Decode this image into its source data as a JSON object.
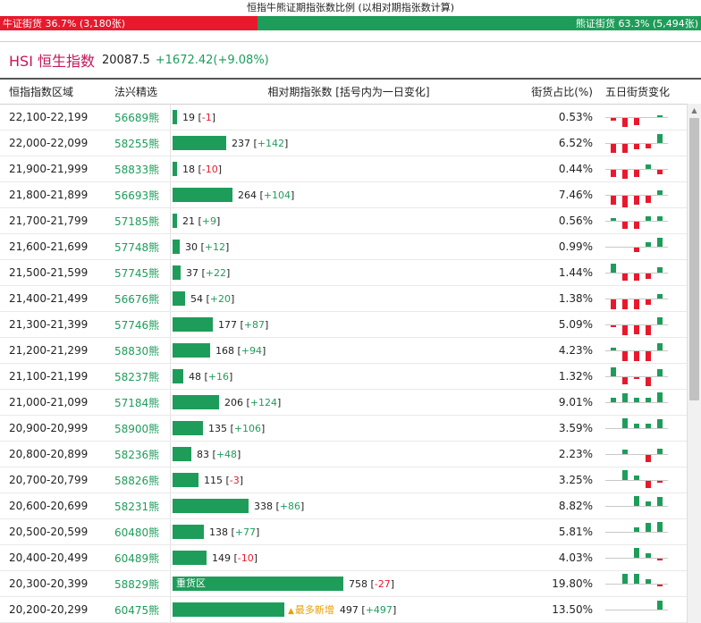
{
  "header": {
    "title": "恒指牛熊证期指张数比例 (以相对期指张数计算)",
    "bull_label": "牛证街货 36.7% (3,180张)",
    "bear_label": "熊证街货 63.3% (5,494张)",
    "bull_percent": 36.7,
    "bull_color": "#e8192c",
    "bear_color": "#1e9d5a"
  },
  "index": {
    "name": "HSI 恒生指数",
    "value": "20087.5",
    "change": "+1672.42(+9.08%)"
  },
  "table": {
    "columns": [
      "恒指指数区域",
      "法兴精选",
      "相对期指张数 [括号内为一日变化]",
      "街货占比(%)",
      "五日街货变化"
    ],
    "rows": [
      {
        "range": "22,100-22,199",
        "code": "56689熊",
        "count": 19,
        "count_text": "19",
        "delta": "-1",
        "pct": "0.53%",
        "spark": [
          -2,
          -6,
          -5,
          0,
          1
        ]
      },
      {
        "range": "22,000-22,099",
        "code": "58255熊",
        "count": 237,
        "count_text": "237",
        "delta": "+142",
        "pct": "6.52%",
        "spark": [
          -6,
          -6,
          -4,
          -3,
          6
        ]
      },
      {
        "range": "21,900-21,999",
        "code": "58833熊",
        "count": 18,
        "count_text": "18",
        "delta": "-10",
        "pct": "0.44%",
        "spark": [
          -5,
          -6,
          -5,
          3,
          -3
        ]
      },
      {
        "range": "21,800-21,899",
        "code": "56693熊",
        "count": 264,
        "count_text": "264",
        "delta": "+104",
        "pct": "7.46%",
        "spark": [
          -6,
          -8,
          -6,
          -5,
          3
        ]
      },
      {
        "range": "21,700-21,799",
        "code": "57185熊",
        "count": 21,
        "count_text": "21",
        "delta": "+9",
        "pct": "0.56%",
        "spark": [
          2,
          -5,
          -5,
          3,
          3
        ]
      },
      {
        "range": "21,600-21,699",
        "code": "57748熊",
        "count": 30,
        "count_text": "30",
        "delta": "+12",
        "pct": "0.99%",
        "spark": [
          0,
          0,
          -3,
          3,
          6
        ]
      },
      {
        "range": "21,500-21,599",
        "code": "57745熊",
        "count": 37,
        "count_text": "37",
        "delta": "+22",
        "pct": "1.44%",
        "spark": [
          6,
          -5,
          -5,
          -4,
          4
        ]
      },
      {
        "range": "21,400-21,499",
        "code": "56676熊",
        "count": 54,
        "count_text": "54",
        "delta": "+20",
        "pct": "1.38%",
        "spark": [
          -7,
          -7,
          -7,
          -4,
          3
        ]
      },
      {
        "range": "21,300-21,399",
        "code": "57746熊",
        "count": 177,
        "count_text": "177",
        "delta": "+87",
        "pct": "5.09%",
        "spark": [
          -1,
          -7,
          -6,
          -7,
          5
        ]
      },
      {
        "range": "21,200-21,299",
        "code": "58830熊",
        "count": 168,
        "count_text": "168",
        "delta": "+94",
        "pct": "4.23%",
        "spark": [
          2,
          -7,
          -7,
          -7,
          5
        ]
      },
      {
        "range": "21,100-21,199",
        "code": "58237熊",
        "count": 48,
        "count_text": "48",
        "delta": "+16",
        "pct": "1.32%",
        "spark": [
          6,
          -5,
          -1,
          -6,
          5
        ]
      },
      {
        "range": "21,000-21,099",
        "code": "57184熊",
        "count": 206,
        "count_text": "206",
        "delta": "+124",
        "pct": "9.01%",
        "spark": [
          3,
          6,
          3,
          3,
          7
        ]
      },
      {
        "range": "20,900-20,999",
        "code": "58900熊",
        "count": 135,
        "count_text": "135",
        "delta": "+106",
        "pct": "3.59%",
        "spark": [
          0,
          7,
          3,
          3,
          6
        ]
      },
      {
        "range": "20,800-20,899",
        "code": "58236熊",
        "count": 83,
        "count_text": "83",
        "delta": "+48",
        "pct": "2.23%",
        "spark": [
          0,
          3,
          0,
          -5,
          4
        ]
      },
      {
        "range": "20,700-20,799",
        "code": "58826熊",
        "count": 115,
        "count_text": "115",
        "delta": "-3",
        "pct": "3.25%",
        "spark": [
          0,
          7,
          3,
          -5,
          -1
        ]
      },
      {
        "range": "20,600-20,699",
        "code": "58231熊",
        "count": 338,
        "count_text": "338",
        "delta": "+86",
        "pct": "8.82%",
        "spark": [
          0,
          0,
          7,
          3,
          6
        ]
      },
      {
        "range": "20,500-20,599",
        "code": "60480熊",
        "count": 138,
        "count_text": "138",
        "delta": "+77",
        "pct": "5.81%",
        "spark": [
          0,
          0,
          3,
          6,
          7
        ]
      },
      {
        "range": "20,400-20,499",
        "code": "60489熊",
        "count": 149,
        "count_text": "149",
        "delta": "-10",
        "pct": "4.03%",
        "spark": [
          0,
          0,
          7,
          3,
          -1
        ]
      },
      {
        "range": "20,300-20,399",
        "code": "58829熊",
        "count": 758,
        "count_text": "758",
        "delta": "-27",
        "pct": "19.80%",
        "spark": [
          0,
          7,
          7,
          3,
          -1
        ],
        "bar_label": "重货区"
      },
      {
        "range": "20,200-20,299",
        "code": "60475熊",
        "count": 497,
        "count_text": "497",
        "delta": "+497",
        "pct": "13.50%",
        "spark": [
          0,
          0,
          0,
          0,
          6
        ],
        "marker": "最多新增",
        "marker_icon": "triangle-up-icon"
      }
    ]
  }
}
